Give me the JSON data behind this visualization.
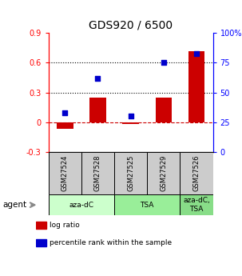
{
  "title": "GDS920 / 6500",
  "categories": [
    "GSM27524",
    "GSM27528",
    "GSM27525",
    "GSM27529",
    "GSM27526"
  ],
  "log_ratio": [
    -0.07,
    0.25,
    -0.02,
    0.25,
    0.72
  ],
  "percentile": [
    33,
    62,
    30,
    75,
    83
  ],
  "bar_color": "#cc0000",
  "dot_color": "#0000cc",
  "ylim_left": [
    -0.3,
    0.9
  ],
  "ylim_right": [
    0,
    100
  ],
  "yticks_left": [
    -0.3,
    0.0,
    0.3,
    0.6,
    0.9
  ],
  "ytick_labels_left": [
    "-0.3",
    "0",
    "0.3",
    "0.6",
    "0.9"
  ],
  "yticks_right": [
    0,
    25,
    50,
    75,
    100
  ],
  "ytick_labels_right": [
    "0",
    "25",
    "50",
    "75",
    "100%"
  ],
  "hlines": [
    0.3,
    0.6
  ],
  "dashed_zero": 0.0,
  "agent_groups": [
    {
      "label": "aza-dC",
      "start": 0,
      "end": 2,
      "color": "#ccffcc"
    },
    {
      "label": "TSA",
      "start": 2,
      "end": 4,
      "color": "#99ee99"
    },
    {
      "label": "aza-dC,\nTSA",
      "start": 4,
      "end": 5,
      "color": "#88dd88"
    }
  ],
  "sample_box_color": "#cccccc",
  "legend_items": [
    {
      "label": "log ratio",
      "color": "#cc0000"
    },
    {
      "label": "percentile rank within the sample",
      "color": "#0000cc"
    }
  ],
  "agent_label": "agent",
  "background_color": "#ffffff",
  "title_fontsize": 10,
  "tick_fontsize": 7,
  "label_fontsize": 7
}
